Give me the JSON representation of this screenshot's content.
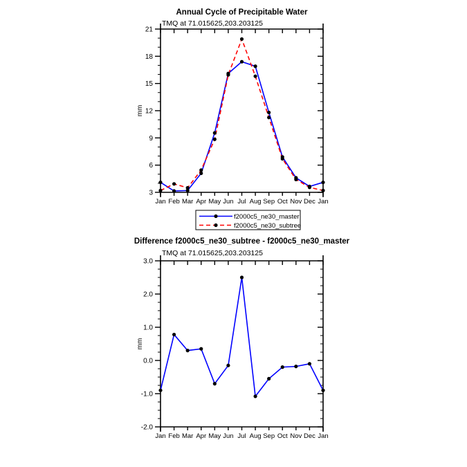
{
  "figure": {
    "background": "#ffffff",
    "axis_color": "#000000",
    "marker_color": "#000000"
  },
  "legend": {
    "entries": [
      {
        "label": "f2000c5_ne30_master",
        "color": "#0000ff",
        "line_style": "solid"
      },
      {
        "label": "f2000c5_ne30_subtree",
        "color": "#ff0000",
        "line_style": "dashed"
      }
    ]
  },
  "chart_data": [
    {
      "type": "line",
      "title": "Annual Cycle of Precipitable Water",
      "subtitle": "TMQ at 71.015625,203.203125",
      "xlabel": "",
      "ylabel": "mm",
      "categories": [
        "Jan",
        "Feb",
        "Mar",
        "Apr",
        "May",
        "Jun",
        "Jul",
        "Aug",
        "Sep",
        "Oct",
        "Nov",
        "Dec",
        "Jan"
      ],
      "ylim": [
        3,
        21
      ],
      "yticks": [
        3,
        6,
        9,
        12,
        15,
        18,
        21
      ],
      "ytick_labels": [
        "3",
        "6",
        "9",
        "12",
        "15",
        "18",
        "21"
      ],
      "y_minor_step": 1,
      "grid": false,
      "legend_position": "below",
      "series": [
        {
          "name": "f2000c5_ne30_master",
          "color": "#0000ff",
          "line_style": "solid",
          "marker": "circle",
          "marker_color": "#000000",
          "values": [
            4.1,
            3.15,
            3.2,
            5.1,
            9.55,
            16.1,
            17.4,
            16.9,
            11.8,
            6.9,
            4.6,
            3.65,
            4.1
          ]
        },
        {
          "name": "f2000c5_ne30_subtree",
          "color": "#ff0000",
          "line_style": "dashed",
          "marker": "circle",
          "marker_color": "#000000",
          "values": [
            3.2,
            3.93,
            3.5,
            5.45,
            8.85,
            15.95,
            19.9,
            15.8,
            11.25,
            6.7,
            4.42,
            3.55,
            3.2
          ]
        }
      ]
    },
    {
      "type": "line",
      "title": "Difference f2000c5_ne30_subtree - f2000c5_ne30_master",
      "subtitle": "TMQ at 71.015625,203.203125",
      "xlabel": "",
      "ylabel": "mm",
      "categories": [
        "Jan",
        "Feb",
        "Mar",
        "Apr",
        "May",
        "Jun",
        "Jul",
        "Aug",
        "Sep",
        "Oct",
        "Nov",
        "Dec",
        "Jan"
      ],
      "ylim": [
        -2,
        3
      ],
      "yticks": [
        -2,
        -1,
        0,
        1,
        2,
        3
      ],
      "ytick_labels": [
        "-2.0",
        "-1.0",
        "0.0",
        "1.0",
        "2.0",
        "3.0"
      ],
      "y_minor_step": 0.25,
      "grid": false,
      "legend_position": "none",
      "series": [
        {
          "name": "f2000c5_ne30_subtree - f2000c5_ne30_master",
          "color": "#0000ff",
          "line_style": "solid",
          "marker": "circle",
          "marker_color": "#000000",
          "values": [
            -0.9,
            0.78,
            0.3,
            0.35,
            -0.7,
            -0.15,
            2.5,
            -1.08,
            -0.55,
            -0.2,
            -0.18,
            -0.1,
            -0.9
          ]
        }
      ]
    }
  ]
}
